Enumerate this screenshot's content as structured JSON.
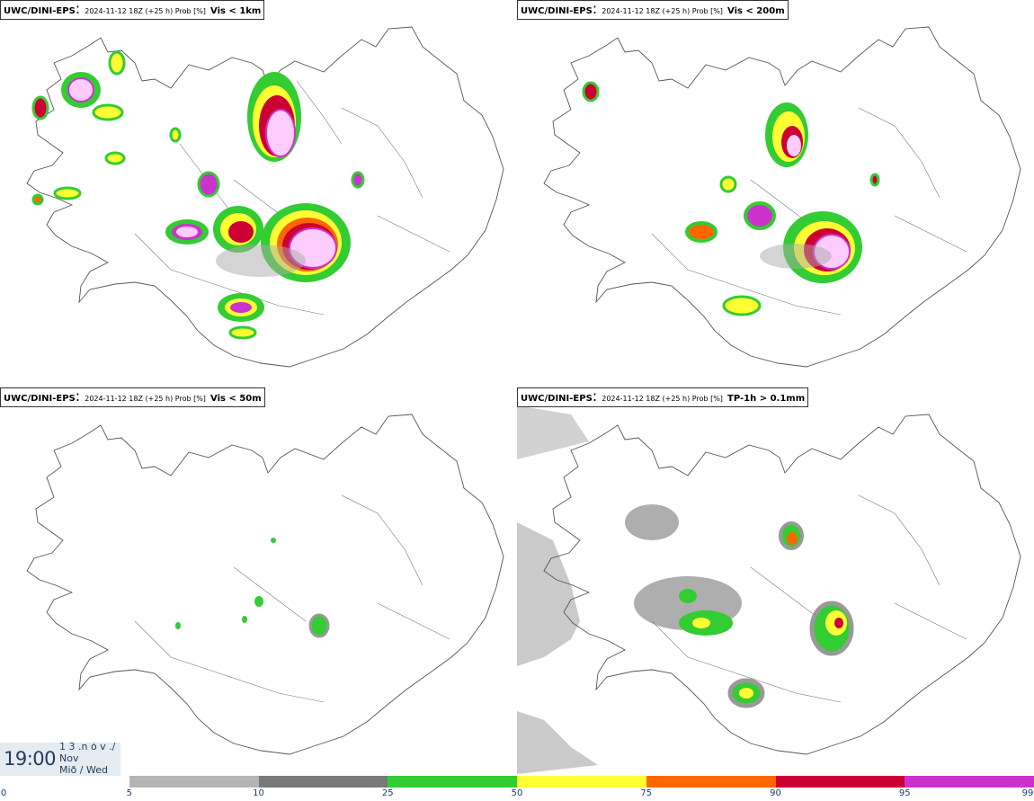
{
  "panels": [
    {
      "source": "UWC/DINI-EPS",
      "run": "2024-11-12 18Z (+25 h) Prob [%]",
      "threshold": "Vis < 1km"
    },
    {
      "source": "UWC/DINI-EPS",
      "run": "2024-11-12 18Z (+25 h) Prob [%]",
      "threshold": "Vis < 200m"
    },
    {
      "source": "UWC/DINI-EPS",
      "run": "2024-11-12 18Z (+25 h) Prob [%]",
      "threshold": "Vis < 50m"
    },
    {
      "source": "UWC/DINI-EPS",
      "run": "2024-11-12 18Z (+25 h) Prob [%]",
      "threshold": "TP-1h > 0.1mm"
    }
  ],
  "valid_time": {
    "time": "19:00",
    "date_line1": "1 3 .n ó v ./",
    "date_line2": "Nov",
    "date_line3": "Mið / Wed"
  },
  "legend": {
    "ticks": [
      "0",
      "5",
      "10",
      "25",
      "50",
      "75",
      "90",
      "95",
      "99"
    ],
    "colors": [
      "#ffffff",
      "#b4b4b4",
      "#787878",
      "#33cc33",
      "#ffff33",
      "#ff6600",
      "#cc0033",
      "#cc33cc",
      "#ffccff"
    ]
  }
}
